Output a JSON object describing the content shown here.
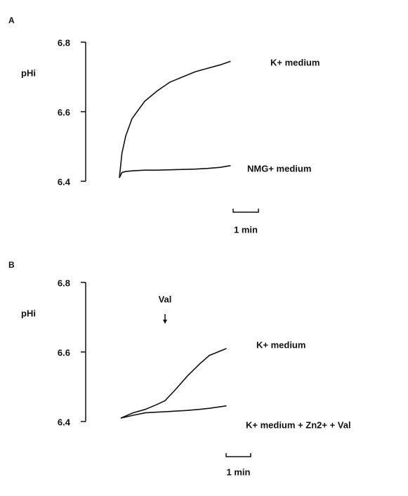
{
  "chart_data": [
    {
      "type": "line",
      "panel_label": "A",
      "ylabel": "pHi",
      "x": [
        0,
        0.1,
        0.25,
        0.5,
        1,
        1.5,
        2,
        2.5,
        3,
        3.5,
        4,
        4.4
      ],
      "series": [
        {
          "name": "K+ medium",
          "color": "#111111",
          "values": [
            6.41,
            6.48,
            6.53,
            6.58,
            6.63,
            6.66,
            6.685,
            6.7,
            6.715,
            6.725,
            6.735,
            6.745
          ]
        },
        {
          "name": "NMG+ medium",
          "color": "#111111",
          "values": [
            6.41,
            6.425,
            6.428,
            6.43,
            6.432,
            6.432,
            6.433,
            6.434,
            6.435,
            6.437,
            6.44,
            6.445
          ]
        }
      ],
      "xlim": [
        0,
        4.5
      ],
      "ylim": [
        6.4,
        6.8
      ],
      "yticks": [
        6.4,
        6.6,
        6.8
      ],
      "scale_bar": {
        "length": 1,
        "label": "1 min"
      }
    },
    {
      "type": "line",
      "panel_label": "B",
      "ylabel": "pHi",
      "x": [
        0,
        0.5,
        1,
        1.5,
        1.8,
        2.2,
        2.7,
        3.2,
        3.6,
        4.3
      ],
      "series": [
        {
          "name": "K+ medium",
          "color": "#111111",
          "values": [
            6.41,
            6.425,
            6.435,
            6.45,
            6.46,
            6.49,
            6.53,
            6.565,
            6.59,
            6.61
          ]
        },
        {
          "name": "K+ medium + Zn2+ + Val",
          "color": "#111111",
          "values": [
            6.41,
            6.418,
            6.425,
            6.427,
            6.428,
            6.43,
            6.432,
            6.435,
            6.438,
            6.445
          ]
        }
      ],
      "annotation": "Val",
      "xlim": [
        0,
        4.5
      ],
      "ylim": [
        6.4,
        6.8
      ],
      "yticks": [
        6.4,
        6.6,
        6.8
      ],
      "scale_bar": {
        "length": 1,
        "label": "1 min"
      }
    }
  ]
}
